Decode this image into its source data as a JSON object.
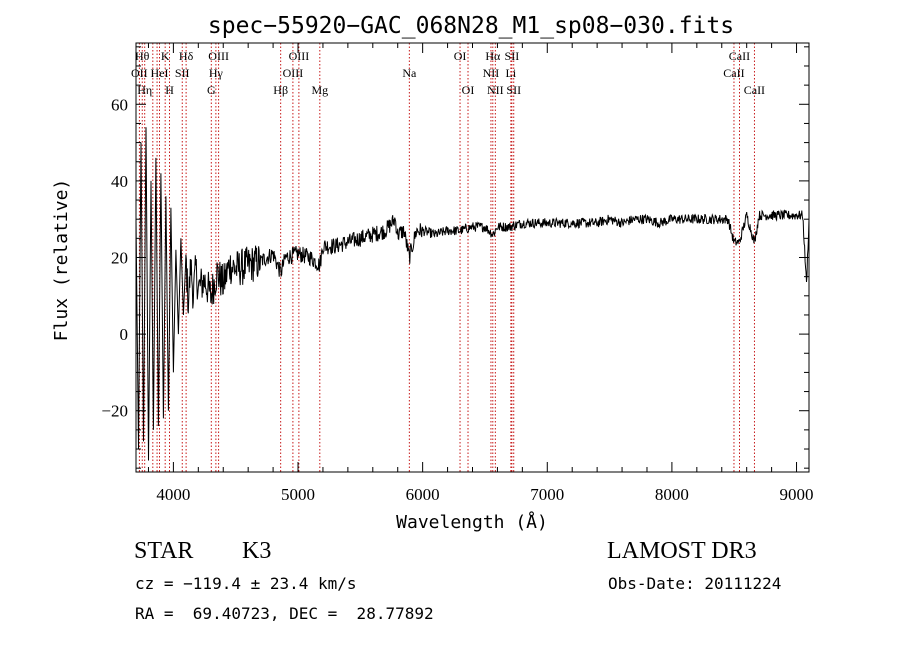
{
  "chart_data": {
    "type": "line",
    "title": "spec−55920−GAC_068N28_M1_sp08−030.fits",
    "xlabel": "Wavelength (Å)",
    "ylabel": "Flux (relative)",
    "xlim": [
      3700,
      9100
    ],
    "ylim": [
      -36,
      76
    ],
    "x_ticks": [
      4000,
      5000,
      6000,
      7000,
      8000,
      9000
    ],
    "x_tick_labels": [
      "4000",
      "5000",
      "6000",
      "7000",
      "8000",
      "9000"
    ],
    "y_ticks": [
      -20,
      0,
      20,
      40,
      60
    ],
    "y_tick_labels": [
      "−20",
      "0",
      "20",
      "40",
      "60"
    ],
    "series": [
      {
        "name": "flux",
        "x": [
          3700,
          3720,
          3740,
          3760,
          3780,
          3800,
          3820,
          3840,
          3860,
          3880,
          3900,
          3920,
          3940,
          3960,
          3980,
          4000,
          4020,
          4040,
          4060,
          4080,
          4100,
          4120,
          4140,
          4160,
          4180,
          4200,
          4250,
          4300,
          4350,
          4400,
          4450,
          4500,
          4600,
          4700,
          4800,
          4861,
          4900,
          5000,
          5100,
          5175,
          5200,
          5300,
          5400,
          5500,
          5600,
          5700,
          5780,
          5800,
          5850,
          5893,
          5950,
          6000,
          6100,
          6200,
          6300,
          6400,
          6500,
          6563,
          6600,
          6700,
          6800,
          6900,
          7000,
          7100,
          7200,
          7300,
          7400,
          7500,
          7600,
          7700,
          7800,
          7900,
          8000,
          8100,
          8200,
          8300,
          8400,
          8450,
          8498,
          8542,
          8600,
          8662,
          8700,
          8800,
          8900,
          9000,
          9050,
          9080,
          9100
        ],
        "y": [
          30,
          -30,
          50,
          -28,
          54,
          -33,
          40,
          -25,
          46,
          -24,
          42,
          -22,
          36,
          -20,
          33,
          -10,
          22,
          0,
          25,
          5,
          20,
          8,
          18,
          10,
          17,
          12,
          14,
          10,
          16,
          13,
          18,
          17,
          18,
          19,
          21,
          16,
          20,
          21,
          20,
          18,
          23,
          23,
          24,
          25,
          26,
          27,
          30,
          26,
          27,
          20,
          27,
          27,
          26,
          27,
          27,
          28,
          28,
          26,
          28,
          28,
          29,
          29,
          29,
          29,
          29,
          29,
          29,
          30,
          29,
          30,
          30,
          29,
          30,
          30,
          30,
          30,
          30,
          30,
          24,
          24,
          31,
          24,
          31,
          31,
          31,
          31,
          31,
          13,
          30
        ]
      }
    ],
    "spectral_lines": [
      {
        "wl": 3727,
        "label": "OII",
        "row": 2
      },
      {
        "wl": 3750,
        "label": "Hθ",
        "row": 1
      },
      {
        "wl": 3770,
        "label": "Hη",
        "row": 3
      },
      {
        "wl": 3835,
        "label": "",
        "row": 0
      },
      {
        "wl": 3869,
        "label": "",
        "row": 0
      },
      {
        "wl": 3934,
        "label": "K",
        "row": 1
      },
      {
        "wl": 3969,
        "label": "H",
        "row": 3
      },
      {
        "wl": 3889,
        "label": "HeI",
        "row": 2
      },
      {
        "wl": 4071,
        "label": "SII",
        "row": 2
      },
      {
        "wl": 4102,
        "label": "Hδ",
        "row": 1
      },
      {
        "wl": 4304,
        "label": "G",
        "row": 3
      },
      {
        "wl": 4341,
        "label": "Hγ",
        "row": 2
      },
      {
        "wl": 4363,
        "label": "OIII",
        "row": 1
      },
      {
        "wl": 4861,
        "label": "Hβ",
        "row": 3
      },
      {
        "wl": 4959,
        "label": "OIII",
        "row": 2
      },
      {
        "wl": 5007,
        "label": "OIII",
        "row": 1
      },
      {
        "wl": 5175,
        "label": "Mg",
        "row": 3
      },
      {
        "wl": 5893,
        "label": "Na",
        "row": 2
      },
      {
        "wl": 6300,
        "label": "OI",
        "row": 1
      },
      {
        "wl": 6364,
        "label": "OI",
        "row": 3
      },
      {
        "wl": 6548,
        "label": "NII",
        "row": 2
      },
      {
        "wl": 6563,
        "label": "Hα",
        "row": 1
      },
      {
        "wl": 6583,
        "label": "NII",
        "row": 3
      },
      {
        "wl": 6708,
        "label": "Li",
        "row": 2
      },
      {
        "wl": 6716,
        "label": "SII",
        "row": 1
      },
      {
        "wl": 6731,
        "label": "SII",
        "row": 3
      },
      {
        "wl": 8498,
        "label": "CaII",
        "row": 2
      },
      {
        "wl": 8542,
        "label": "CaII",
        "row": 1
      },
      {
        "wl": 8662,
        "label": "CaII",
        "row": 3
      }
    ]
  },
  "info": {
    "class_label": "STAR",
    "subclass": "K3",
    "survey": "LAMOST DR3",
    "cz": "cz = −119.4 ± 23.4 km/s",
    "obs_date": "Obs-Date: 20111224",
    "coords": "RA =  69.40723, DEC =  28.77892"
  }
}
